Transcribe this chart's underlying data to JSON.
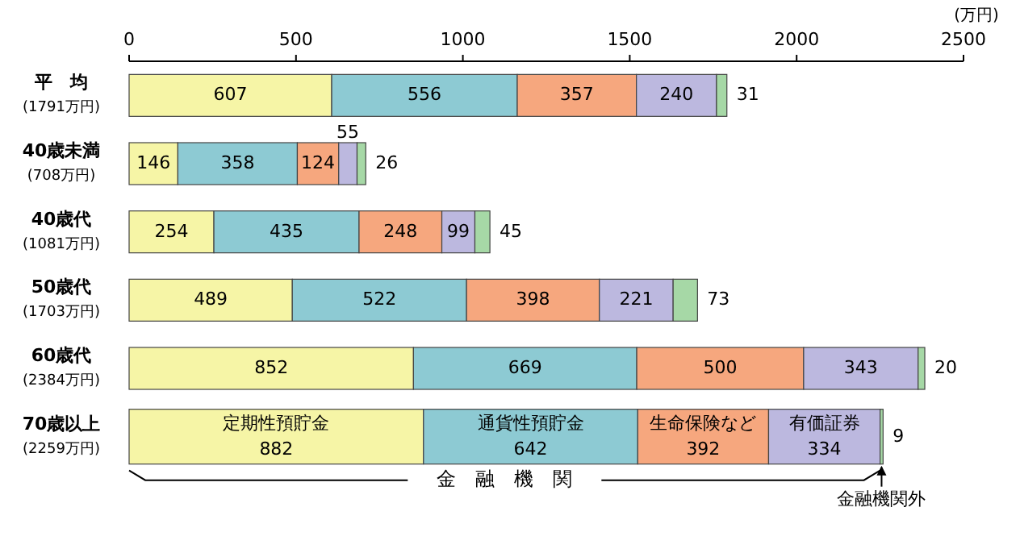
{
  "chart_data": {
    "type": "bar",
    "orientation": "horizontal",
    "stacked": true,
    "categories": [
      "平　均\n(1791万円)",
      "40歳未満\n(708万円)",
      "40歳代\n(1081万円)",
      "50歳代\n(1703万円)",
      "60歳代\n(2384万円)",
      "70歳以上\n(2259万円)"
    ],
    "series": [
      {
        "name": "定期性預貯金",
        "color": "#f6f5a6",
        "values": [
          607,
          146,
          254,
          489,
          852,
          882
        ]
      },
      {
        "name": "通貨性預貯金",
        "color": "#8dcad3",
        "values": [
          556,
          358,
          435,
          522,
          669,
          642
        ]
      },
      {
        "name": "生命保険など",
        "color": "#f6a77e",
        "values": [
          357,
          124,
          248,
          398,
          500,
          392
        ]
      },
      {
        "name": "有価証券",
        "color": "#bcb8df",
        "values": [
          240,
          55,
          99,
          221,
          343,
          334
        ]
      },
      {
        "name": "金融機関外",
        "color": "#a6d8a6",
        "values": [
          31,
          26,
          45,
          73,
          20,
          9
        ]
      }
    ],
    "xlim": [
      0,
      2500
    ],
    "xticks": [
      0,
      500,
      1000,
      1500,
      2000,
      2500
    ],
    "xlabel": "(万円)",
    "data_labels": true,
    "annotations": [
      "金　融　機　関"
    ]
  }
}
